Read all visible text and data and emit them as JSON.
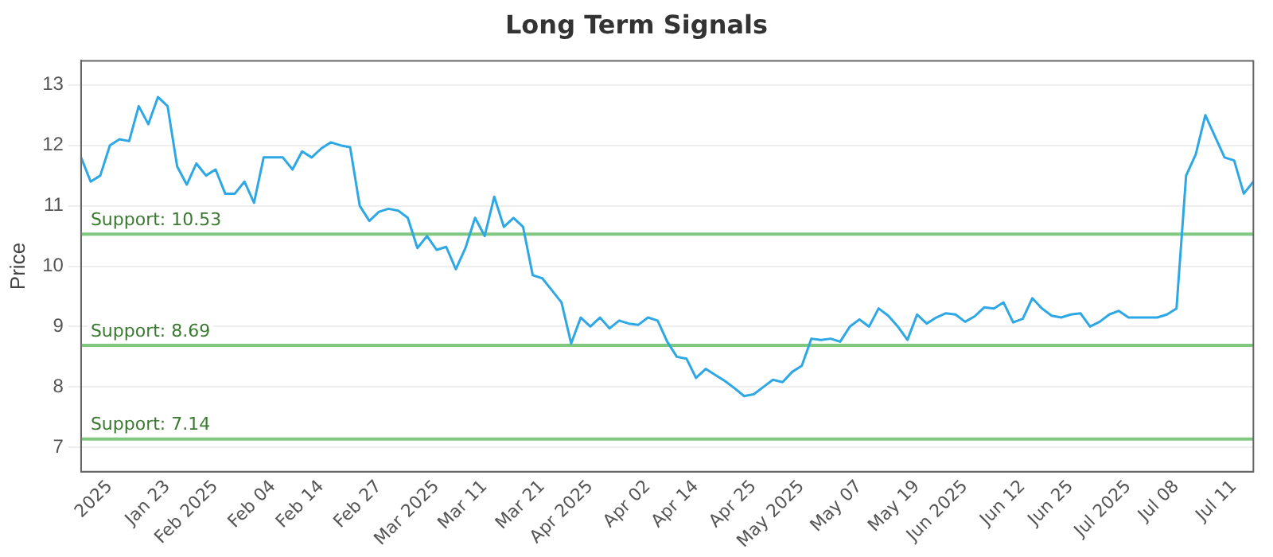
{
  "chart_data": {
    "type": "line",
    "title": "Long Term Signals",
    "ylabel": "Price",
    "categories": [
      null,
      null,
      null,
      "2025",
      null,
      null,
      null,
      null,
      null,
      "Jan 23",
      null,
      null,
      null,
      null,
      "Feb 2025",
      null,
      null,
      null,
      null,
      null,
      "Feb 04",
      null,
      null,
      null,
      null,
      "Feb 14",
      null,
      null,
      null,
      null,
      null,
      "Feb 27",
      null,
      null,
      null,
      null,
      null,
      "Mar 2025",
      null,
      null,
      null,
      null,
      "Mar 11",
      null,
      null,
      null,
      null,
      null,
      "Mar 21",
      null,
      null,
      null,
      null,
      "Apr 2025",
      null,
      null,
      null,
      null,
      null,
      "Apr 02",
      null,
      null,
      null,
      null,
      "Apr 14",
      null,
      null,
      null,
      null,
      null,
      "Apr 25",
      null,
      null,
      null,
      null,
      "May 2025",
      null,
      null,
      null,
      null,
      null,
      "May 07",
      null,
      null,
      null,
      null,
      null,
      "May 19",
      null,
      null,
      null,
      null,
      "Jun 2025",
      null,
      null,
      null,
      null,
      null,
      "Jun 12",
      null,
      null,
      null,
      null,
      "Jun 25",
      null,
      null,
      null,
      null,
      null,
      "Jul 2025",
      null,
      null,
      null,
      null,
      "Jul 08",
      null,
      null,
      null,
      null,
      null,
      "Jul 11",
      null,
      null
    ],
    "series": [
      {
        "color": "#2ea8e5",
        "values": [
          11.8,
          11.4,
          11.5,
          12.0,
          12.1,
          12.07,
          12.65,
          12.35,
          12.8,
          12.65,
          11.65,
          11.35,
          11.7,
          11.5,
          11.6,
          11.2,
          11.2,
          11.4,
          11.05,
          11.8,
          11.8,
          11.8,
          11.6,
          11.9,
          11.8,
          11.95,
          12.05,
          12.0,
          11.97,
          11.0,
          10.75,
          10.9,
          10.95,
          10.92,
          10.8,
          10.3,
          10.5,
          10.27,
          10.32,
          9.95,
          10.3,
          10.8,
          10.5,
          11.15,
          10.65,
          10.8,
          10.65,
          9.85,
          9.8,
          9.6,
          9.4,
          8.72,
          9.15,
          9.0,
          9.15,
          8.97,
          9.1,
          9.05,
          9.03,
          9.15,
          9.1,
          8.75,
          8.5,
          8.47,
          8.15,
          8.3,
          8.2,
          8.1,
          7.98,
          7.85,
          7.88,
          8.0,
          8.12,
          8.08,
          8.25,
          8.35,
          8.8,
          8.78,
          8.8,
          8.75,
          9.0,
          9.12,
          9.0,
          9.3,
          9.18,
          9.0,
          8.78,
          9.2,
          9.05,
          9.15,
          9.22,
          9.2,
          9.08,
          9.17,
          9.32,
          9.3,
          9.4,
          9.07,
          9.13,
          9.47,
          9.3,
          9.18,
          9.15,
          9.2,
          9.22,
          9.0,
          9.08,
          9.2,
          9.26,
          9.15,
          9.15,
          9.15,
          9.15,
          9.2,
          9.3,
          11.5,
          11.85,
          12.5,
          12.15,
          11.8,
          11.75,
          11.2,
          11.4
        ]
      }
    ],
    "ylim": [
      6.6,
      13.4
    ],
    "yticks": [
      7,
      8,
      9,
      10,
      11,
      12,
      13
    ],
    "ref_lines": [
      {
        "axis": "y",
        "value": 10.53,
        "label": "Support: 10.53",
        "color": "#80c880"
      },
      {
        "axis": "y",
        "value": 8.69,
        "label": "Support: 8.69",
        "color": "#80c880"
      },
      {
        "axis": "y",
        "value": 7.14,
        "label": "Support: 7.14",
        "color": "#80c880"
      }
    ],
    "grid": "y",
    "legend": false,
    "marker": "none",
    "line_style": "solid"
  }
}
